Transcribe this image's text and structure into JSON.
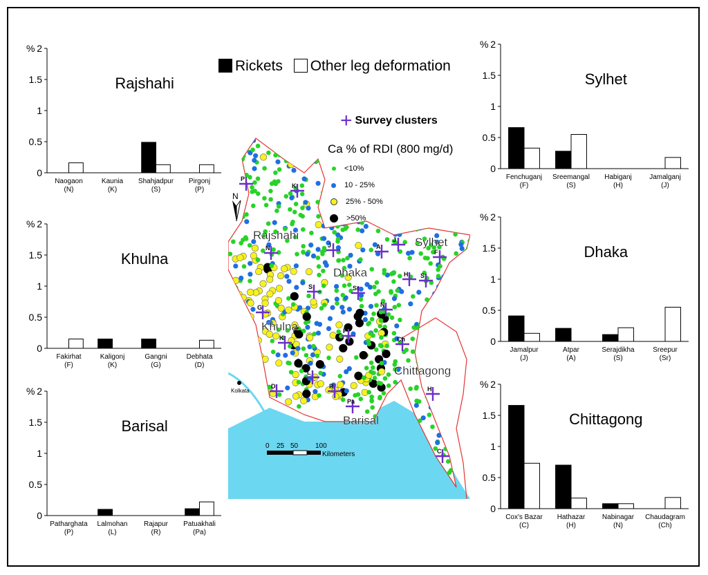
{
  "legend": {
    "rickets": "Rickets",
    "other": "Other leg deformation",
    "survey_clusters": "Survey clusters",
    "map_title": "Ca % of RDI (800 mg/d)",
    "classes": [
      "<10%",
      "10 - 25%",
      "25% - 50%",
      ">50%"
    ],
    "class_colors": [
      "#27d327",
      "#1f6fe0",
      "#f6f21e",
      "#000000"
    ],
    "rickets_color": "#000000",
    "other_color": "#ffffff"
  },
  "map": {
    "north": "N",
    "kolkata": "Kolkata",
    "scale_ticks": [
      "0",
      "25",
      "50",
      "100"
    ],
    "scale_unit": "Kilometers",
    "divisions": [
      "Rajshahi",
      "Dhaka",
      "Sylhet",
      "Khulna",
      "Chittagong",
      "Barisal"
    ],
    "cluster_labels": [
      "P",
      "K",
      "N",
      "J",
      "A",
      "J",
      "F",
      "H",
      "S",
      "S",
      "Sr",
      "G",
      "N",
      "K",
      "F",
      "Ch",
      "L",
      "D",
      "R",
      "Pa",
      "H",
      "C"
    ],
    "sea_color": "#6cd7f0",
    "border_color": "#e53333",
    "cluster_color": "#6a2fc9"
  },
  "chart_data": [
    {
      "type": "bar",
      "title": "Rajshahi",
      "ylabel": "%",
      "ylim": [
        0,
        2
      ],
      "yticks": [
        "0",
        "0.5",
        "1",
        "1.5",
        "2"
      ],
      "categories": [
        "Naogaon",
        "Kaunia",
        "Shahjadpur",
        "Pirgonj"
      ],
      "category_codes": [
        "(N)",
        "(K)",
        "(S)",
        "(P)"
      ],
      "series": [
        {
          "name": "Rickets",
          "values": [
            0,
            0,
            0.49,
            0
          ]
        },
        {
          "name": "Other leg deformation",
          "values": [
            0.16,
            0,
            0.13,
            0.13
          ]
        }
      ]
    },
    {
      "type": "bar",
      "title": "Khulna",
      "ylabel": "%",
      "ylim": [
        0,
        2
      ],
      "yticks": [
        "0",
        "0.5",
        "1",
        "1.5",
        "2"
      ],
      "categories": [
        "Fakirhat",
        "Kaligonj",
        "Gangni",
        "Debhata"
      ],
      "category_codes": [
        "(F)",
        "(K)",
        "(G)",
        "(D)"
      ],
      "series": [
        {
          "name": "Rickets",
          "values": [
            0,
            0.15,
            0.15,
            0
          ]
        },
        {
          "name": "Other leg deformation",
          "values": [
            0.15,
            0,
            0,
            0.13
          ]
        }
      ]
    },
    {
      "type": "bar",
      "title": "Barisal",
      "ylabel": "%",
      "ylim": [
        0,
        2
      ],
      "yticks": [
        "0",
        "0.5",
        "1",
        "1.5",
        "2"
      ],
      "categories": [
        "Patharghata",
        "Lalmohan",
        "Rajapur",
        "Patuakhali"
      ],
      "category_codes": [
        "(P)",
        "(L)",
        "(R)",
        "(Pa)"
      ],
      "series": [
        {
          "name": "Rickets",
          "values": [
            0,
            0.1,
            0,
            0.11
          ]
        },
        {
          "name": "Other leg deformation",
          "values": [
            0,
            0,
            0,
            0.22
          ]
        }
      ]
    },
    {
      "type": "bar",
      "title": "Sylhet",
      "ylabel": "%",
      "ylim": [
        0,
        2
      ],
      "yticks": [
        "0",
        "0.5",
        "1",
        "1.5",
        "2"
      ],
      "categories": [
        "Fenchuganj",
        "Sreemangal",
        "Habiganj",
        "Jamalganj"
      ],
      "category_codes": [
        "(F)",
        "(S)",
        "(H)",
        "(J)"
      ],
      "series": [
        {
          "name": "Rickets",
          "values": [
            0.66,
            0.28,
            0,
            0
          ]
        },
        {
          "name": "Other leg deformation",
          "values": [
            0.33,
            0.55,
            0,
            0.18
          ]
        }
      ]
    },
    {
      "type": "bar",
      "title": "Dhaka",
      "ylabel": "%",
      "ylim": [
        0,
        2
      ],
      "yticks": [
        "0",
        "0.5",
        "1",
        "1.5",
        "2"
      ],
      "categories": [
        "Jamalpur",
        "Atpar",
        "Serajdikha",
        "Sreepur"
      ],
      "category_codes": [
        "(J)",
        "(A)",
        "(S)",
        "(Sr)"
      ],
      "series": [
        {
          "name": "Rickets",
          "values": [
            0.41,
            0.21,
            0.11,
            0
          ]
        },
        {
          "name": "Other leg deformation",
          "values": [
            0.13,
            0,
            0.22,
            0.55
          ]
        }
      ]
    },
    {
      "type": "bar",
      "title": "Chittagong",
      "ylabel": "%",
      "ylim": [
        0,
        2
      ],
      "yticks": [
        "0",
        "0.5",
        "1",
        "1.5",
        "2"
      ],
      "categories": [
        "Cox's Bazar",
        "Hathazar",
        "Nabinagar",
        "Chaudagram"
      ],
      "category_codes": [
        "(C)",
        "(H)",
        "(N)",
        "(Ch)"
      ],
      "series": [
        {
          "name": "Rickets",
          "values": [
            1.66,
            0.7,
            0.08,
            0
          ]
        },
        {
          "name": "Other leg deformation",
          "values": [
            0.73,
            0.17,
            0.08,
            0.18
          ]
        }
      ]
    }
  ]
}
